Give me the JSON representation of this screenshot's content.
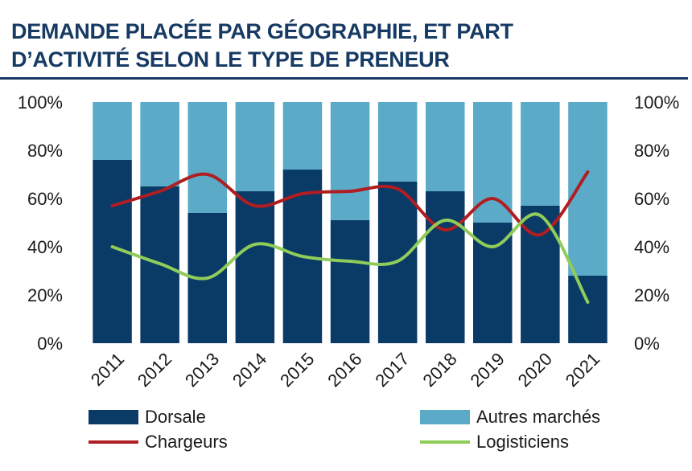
{
  "header": {
    "title_line1": "DEMANDE PLACÉE PAR GÉOGRAPHIE, ET PART",
    "title_line2": "D’ACTIVITÉ SELON LE TYPE DE PRENEUR"
  },
  "colors": {
    "title": "#163a63",
    "dorsale": "#0a3a66",
    "autres": "#5aaac8",
    "chargeurs": "#b01e22",
    "logisticiens": "#90cc5a"
  },
  "chart_data": {
    "type": "bar",
    "stacked": true,
    "categories": [
      "2011",
      "2012",
      "2013",
      "2014",
      "2015",
      "2016",
      "2017",
      "2018",
      "2019",
      "2020",
      "2021"
    ],
    "series": [
      {
        "name": "Dorsale",
        "kind": "bar",
        "values": [
          76,
          65,
          54,
          63,
          72,
          51,
          67,
          63,
          50,
          57,
          28
        ]
      },
      {
        "name": "Autres marchés",
        "kind": "bar",
        "values": [
          24,
          35,
          46,
          37,
          28,
          49,
          33,
          37,
          50,
          43,
          72
        ]
      },
      {
        "name": "Chargeurs",
        "kind": "line",
        "values": [
          57,
          63,
          70,
          57,
          62,
          63,
          64,
          47,
          60,
          45,
          71
        ]
      },
      {
        "name": "Logisticiens",
        "kind": "line",
        "values": [
          40,
          33,
          27,
          41,
          36,
          34,
          34,
          51,
          40,
          53,
          17
        ]
      }
    ],
    "yticks": [
      "0%",
      "20%",
      "40%",
      "60%",
      "80%",
      "100%"
    ],
    "ylim": [
      0,
      100
    ],
    "secondary_yticks": [
      "0%",
      "20%",
      "40%",
      "60%",
      "80%",
      "100%"
    ],
    "legend_position": "bottom",
    "grid": false
  }
}
